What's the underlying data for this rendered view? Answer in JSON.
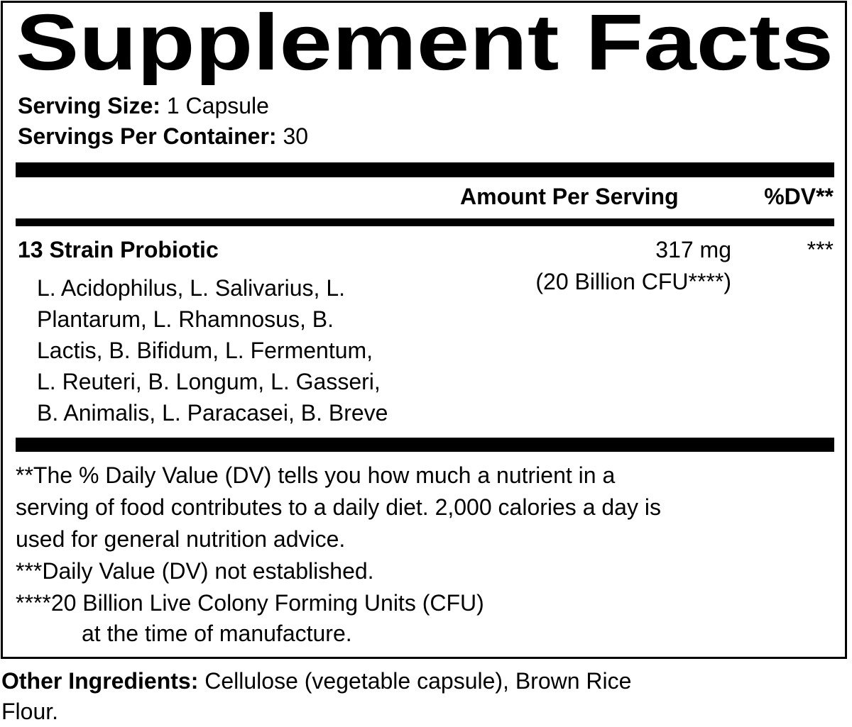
{
  "title": "Supplement Facts",
  "serving_size": {
    "label": "Serving Size:",
    "value": "1 Capsule"
  },
  "servings_per_container": {
    "label": "Servings Per Container:",
    "value": "30"
  },
  "columns": {
    "amount": "Amount Per Serving",
    "dv": "%DV**"
  },
  "ingredient": {
    "name": "13 Strain Probiotic",
    "amount": "317 mg",
    "amount_note": "(20 Billion CFU****)",
    "dv": "***",
    "strain_lines": [
      "L. Acidophilus, L. Salivarius, L.",
      "Plantarum, L. Rhamnosus, B.",
      "Lactis, B. Bifidum, L. Fermentum,",
      "L. Reuteri, B. Longum, L. Gasseri,",
      "B. Animalis, L. Paracasei, B. Breve"
    ]
  },
  "footnotes": [
    "**The % Daily Value (DV) tells you how much a nutrient in a",
    "serving of food contributes to a daily diet. 2,000 calories a day is",
    "used for general nutrition advice.",
    "***Daily Value (DV) not established.",
    "****20 Billion Live Colony Forming Units (CFU)",
    "at the time of manufacture."
  ],
  "other_ingredients": {
    "label": "Other Ingredients:",
    "value": "Cellulose (vegetable capsule), Brown Rice",
    "value_cont": "Flour."
  }
}
